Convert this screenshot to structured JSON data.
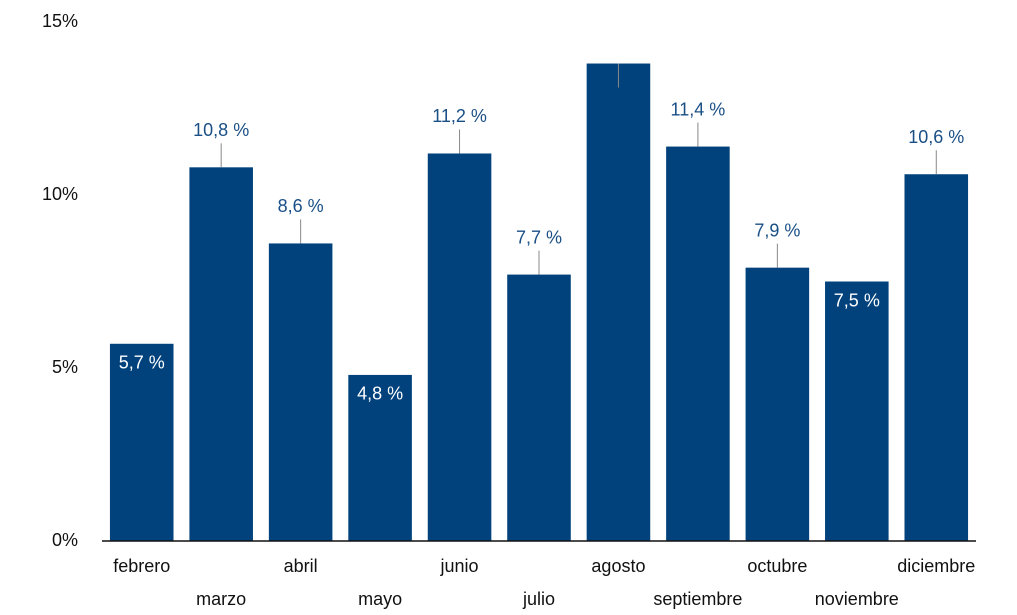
{
  "chart_data": {
    "type": "bar",
    "categories": [
      "febrero",
      "marzo",
      "abril",
      "mayo",
      "junio",
      "julio",
      "agosto",
      "septiembre",
      "octubre",
      "noviembre",
      "diciembre"
    ],
    "values": [
      5.7,
      10.8,
      8.6,
      4.8,
      11.2,
      7.7,
      13.8,
      11.4,
      7.9,
      7.5,
      10.6
    ],
    "value_labels": [
      "5,7 %",
      "10,8 %",
      "8,6 %",
      "4,8 %",
      "11,2 %",
      "7,7 %",
      null,
      "11,4 %",
      "7,9 %",
      "7,5 %",
      "10,6 %"
    ],
    "color": "#02427c",
    "ylim": [
      0,
      15
    ],
    "yticks": [
      {
        "value": 0,
        "label": "0%"
      },
      {
        "value": 5,
        "label": "5%"
      },
      {
        "value": 10,
        "label": "10%"
      },
      {
        "value": 15,
        "label": "15%"
      }
    ],
    "grid": false
  }
}
